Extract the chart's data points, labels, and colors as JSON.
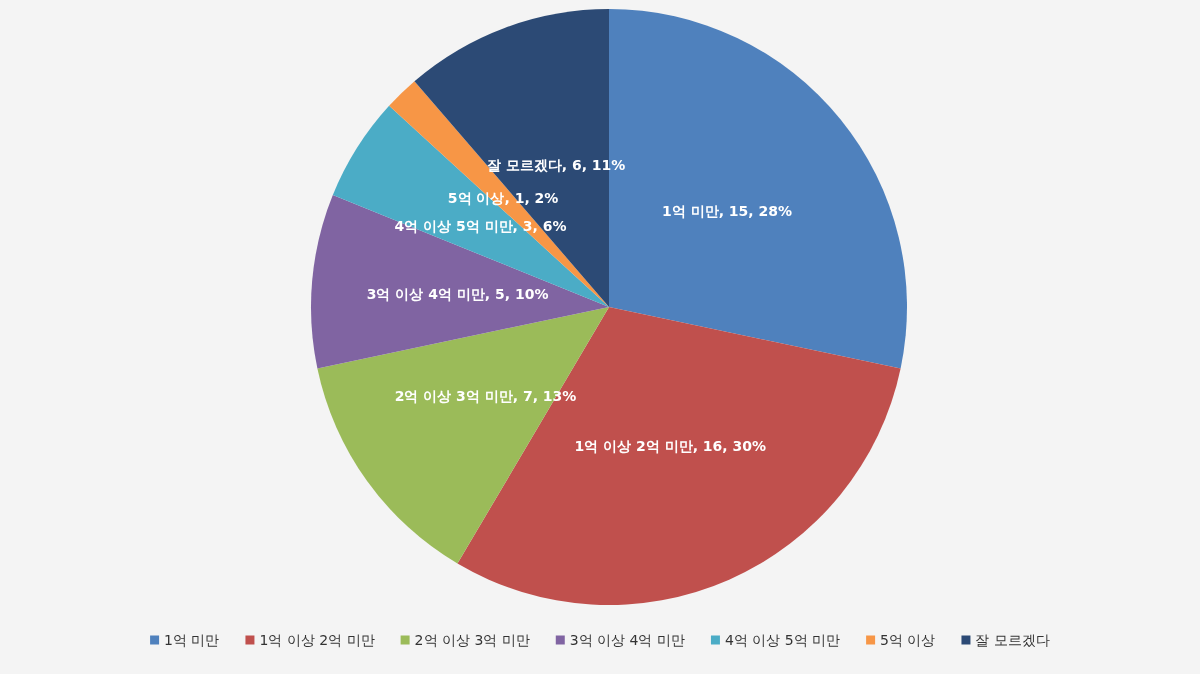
{
  "chart_data": {
    "type": "pie",
    "categories": [
      "1억 미만",
      "1억 이상 2억 미만",
      "2억 이상 3억 미만",
      "3억 이상 4억 미만",
      "4억 이상 5억 미만",
      "5억 이상",
      "잘 모르겠다"
    ],
    "values": [
      15,
      16,
      7,
      5,
      3,
      1,
      6
    ],
    "value_labels": [
      ", 15, 28%",
      ", 16, 30%",
      ", 7, 13%",
      ", 5, 10%",
      ", 3, 6%",
      ", 1, 2%",
      ", 6, 11%"
    ],
    "colors": [
      "#4f81bd",
      "#c0504d",
      "#9bbb59",
      "#8064a2",
      "#4bacc6",
      "#f79646",
      "#2c4a75"
    ],
    "legend": "bottom"
  }
}
